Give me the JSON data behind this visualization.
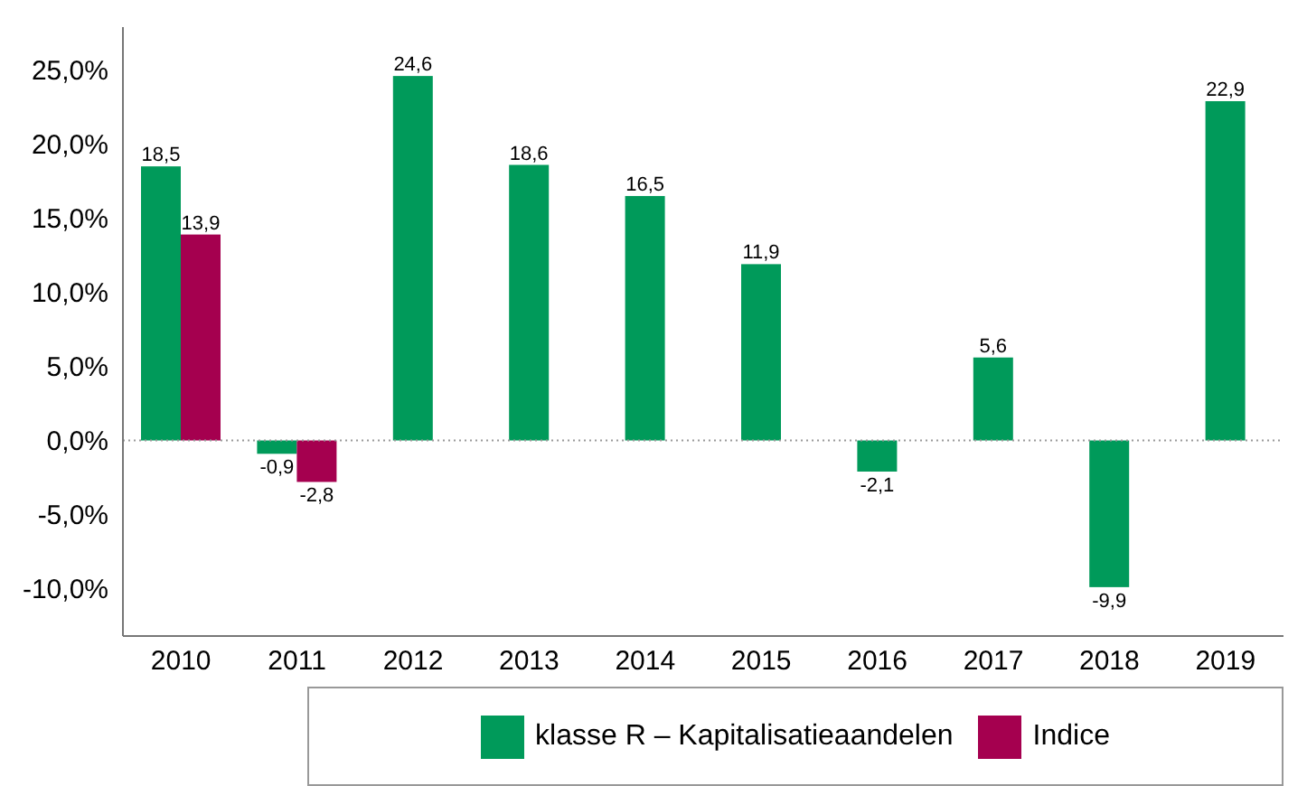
{
  "chart_data": {
    "type": "bar",
    "categories": [
      "2010",
      "2011",
      "2012",
      "2013",
      "2014",
      "2015",
      "2016",
      "2017",
      "2018",
      "2019"
    ],
    "series": [
      {
        "name": "klasse R – Kapitalisatieaandelen",
        "color": "#009a5a",
        "values": [
          18.5,
          -0.9,
          24.6,
          18.6,
          16.5,
          11.9,
          -2.1,
          5.6,
          -9.9,
          22.9
        ],
        "value_labels": [
          "18,5",
          "-0,9",
          "24,6",
          "18,6",
          "16,5",
          "11,9",
          "-2,1",
          "5,6",
          "-9,9",
          "22,9"
        ]
      },
      {
        "name": "Indice",
        "color": "#a5004f",
        "values": [
          13.9,
          -2.8,
          null,
          null,
          null,
          null,
          null,
          null,
          null,
          null
        ],
        "value_labels": [
          "13,9",
          "-2,8",
          null,
          null,
          null,
          null,
          null,
          null,
          null,
          null
        ]
      }
    ],
    "ylim": [
      -13.2,
      27.9
    ],
    "yticks": [
      {
        "value": -10,
        "label": "-10,0%"
      },
      {
        "value": -5,
        "label": "-5,0%"
      },
      {
        "value": 0,
        "label": "0,0%"
      },
      {
        "value": 5,
        "label": "5,0%"
      },
      {
        "value": 10,
        "label": "10,0%"
      },
      {
        "value": 15,
        "label": "15,0%"
      },
      {
        "value": 20,
        "label": "20,0%"
      },
      {
        "value": 25,
        "label": "25,0%"
      }
    ],
    "ref_lines": [
      {
        "axis": "y",
        "value": 0,
        "color": "#999999",
        "line_style": "dotted"
      }
    ],
    "grid": false,
    "legend": "bottom"
  }
}
